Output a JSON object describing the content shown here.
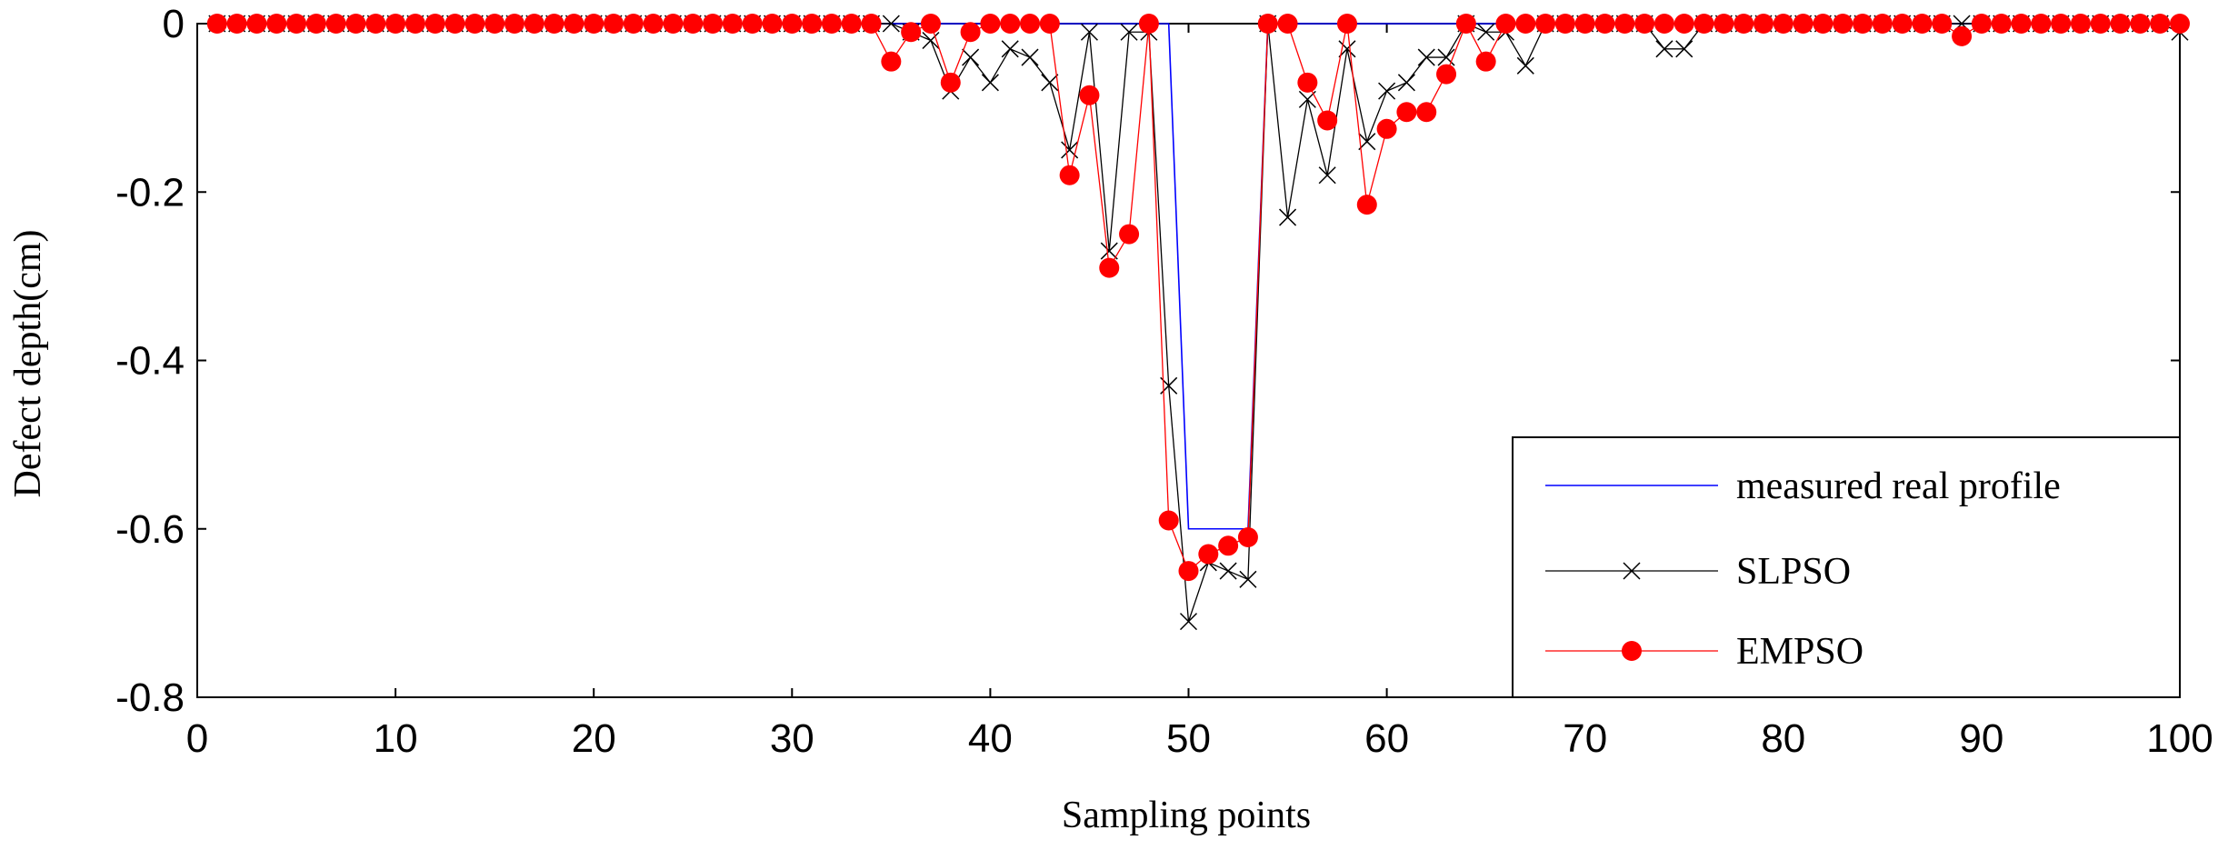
{
  "chart_data": {
    "type": "line",
    "title": "",
    "xlabel": "Sampling points",
    "ylabel": "Defect depth(cm)",
    "xlim": [
      0,
      100
    ],
    "ylim": [
      -0.8,
      0
    ],
    "xticks": [
      0,
      10,
      20,
      30,
      40,
      50,
      60,
      70,
      80,
      90,
      100
    ],
    "yticks": [
      0,
      -0.2,
      -0.4,
      -0.6,
      -0.8
    ],
    "xtick_labels": [
      "0",
      "10",
      "20",
      "30",
      "40",
      "50",
      "60",
      "70",
      "80",
      "90",
      "100"
    ],
    "ytick_labels": [
      "0",
      "-0.2",
      "-0.4",
      "-0.6",
      "-0.8"
    ],
    "legend_position": "bottom-right",
    "grid": false,
    "x": [
      1,
      2,
      3,
      4,
      5,
      6,
      7,
      8,
      9,
      10,
      11,
      12,
      13,
      14,
      15,
      16,
      17,
      18,
      19,
      20,
      21,
      22,
      23,
      24,
      25,
      26,
      27,
      28,
      29,
      30,
      31,
      32,
      33,
      34,
      35,
      36,
      37,
      38,
      39,
      40,
      41,
      42,
      43,
      44,
      45,
      46,
      47,
      48,
      49,
      50,
      51,
      52,
      53,
      54,
      55,
      56,
      57,
      58,
      59,
      60,
      61,
      62,
      63,
      64,
      65,
      66,
      67,
      68,
      69,
      70,
      71,
      72,
      73,
      74,
      75,
      76,
      77,
      78,
      79,
      80,
      81,
      82,
      83,
      84,
      85,
      86,
      87,
      88,
      89,
      90,
      91,
      92,
      93,
      94,
      95,
      96,
      97,
      98,
      99,
      100
    ],
    "series": [
      {
        "name": "measured real profile",
        "color": "#0000ff",
        "marker": "none",
        "values": [
          0,
          0,
          0,
          0,
          0,
          0,
          0,
          0,
          0,
          0,
          0,
          0,
          0,
          0,
          0,
          0,
          0,
          0,
          0,
          0,
          0,
          0,
          0,
          0,
          0,
          0,
          0,
          0,
          0,
          0,
          0,
          0,
          0,
          0,
          0,
          0,
          0,
          0,
          0,
          0,
          0,
          0,
          0,
          0,
          0,
          0,
          0,
          0,
          0,
          -0.6,
          -0.6,
          -0.6,
          -0.6,
          0,
          0,
          0,
          0,
          0,
          0,
          0,
          0,
          0,
          0,
          0,
          0,
          0,
          0,
          0,
          0,
          0,
          0,
          0,
          0,
          0,
          0,
          0,
          0,
          0,
          0,
          0,
          0,
          0,
          0,
          0,
          0,
          0,
          0,
          0,
          0,
          0,
          0,
          0,
          0,
          0,
          0,
          0,
          0,
          0,
          0,
          0
        ]
      },
      {
        "name": "SLPSO",
        "color": "#000000",
        "marker": "x",
        "values": [
          0,
          0,
          0,
          0,
          0,
          0,
          0,
          0,
          0,
          0,
          0,
          0,
          0,
          0,
          0,
          0,
          0,
          0,
          0,
          0,
          0,
          0,
          0,
          0,
          0,
          0,
          0,
          0,
          0,
          0,
          0,
          0,
          0,
          0,
          0,
          -0.01,
          -0.02,
          -0.08,
          -0.04,
          -0.07,
          -0.03,
          -0.04,
          -0.07,
          -0.15,
          -0.01,
          -0.27,
          -0.01,
          -0.01,
          -0.43,
          -0.71,
          -0.64,
          -0.65,
          -0.66,
          0,
          -0.23,
          -0.09,
          -0.18,
          -0.03,
          -0.14,
          -0.08,
          -0.07,
          -0.04,
          -0.04,
          0,
          -0.01,
          -0.01,
          -0.05,
          0,
          0,
          0,
          0,
          0,
          0,
          -0.03,
          -0.03,
          0,
          0,
          0,
          0,
          0,
          0,
          0,
          0,
          0,
          0,
          0,
          0,
          0,
          0,
          0,
          0,
          0,
          0,
          0,
          0,
          0,
          0,
          0,
          0,
          -0.01
        ]
      },
      {
        "name": "EMPSO",
        "color": "#ff0000",
        "marker": "o",
        "values": [
          0,
          0,
          0,
          0,
          0,
          0,
          0,
          0,
          0,
          0,
          0,
          0,
          0,
          0,
          0,
          0,
          0,
          0,
          0,
          0,
          0,
          0,
          0,
          0,
          0,
          0,
          0,
          0,
          0,
          0,
          0,
          0,
          0,
          0,
          -0.045,
          -0.01,
          0,
          -0.07,
          -0.01,
          0,
          0,
          0,
          0,
          -0.18,
          -0.085,
          -0.29,
          -0.25,
          0,
          -0.59,
          -0.65,
          -0.63,
          -0.62,
          -0.61,
          0,
          0,
          -0.07,
          -0.115,
          0,
          -0.215,
          -0.125,
          -0.105,
          -0.105,
          -0.06,
          0,
          -0.045,
          0,
          0,
          0,
          0,
          0,
          0,
          0,
          0,
          0,
          0,
          0,
          0,
          0,
          0,
          0,
          0,
          0,
          0,
          0,
          0,
          0,
          0,
          0,
          -0.015,
          0,
          0,
          0,
          0,
          0,
          0,
          0,
          0,
          0,
          0,
          0
        ]
      }
    ]
  }
}
